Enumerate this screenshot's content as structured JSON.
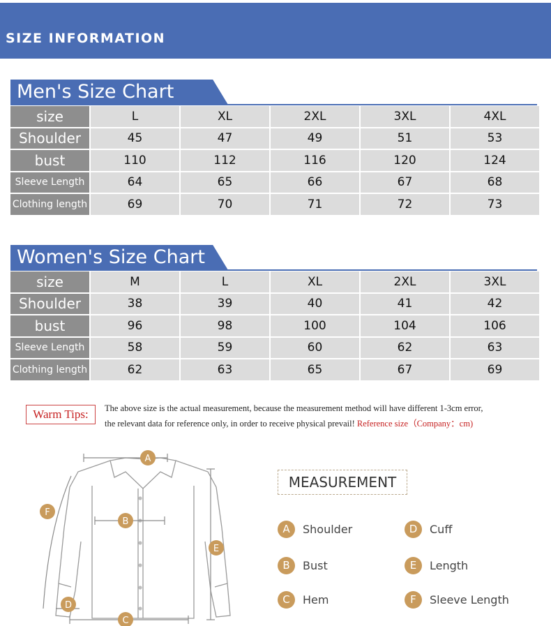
{
  "banner": {
    "title": "SIZE INFORMATION"
  },
  "men_chart": {
    "title": "Men's Size Chart",
    "rows": [
      {
        "label": "size",
        "values": [
          "L",
          "XL",
          "2XL",
          "3XL",
          "4XL"
        ]
      },
      {
        "label": "Shoulder",
        "values": [
          "45",
          "47",
          "49",
          "51",
          "53"
        ]
      },
      {
        "label": "bust",
        "values": [
          "110",
          "112",
          "116",
          "120",
          "124"
        ]
      },
      {
        "label": "Sleeve Length",
        "values": [
          "64",
          "65",
          "66",
          "67",
          "68"
        ]
      },
      {
        "label": "Clothing length",
        "values": [
          "69",
          "70",
          "71",
          "72",
          "73"
        ]
      }
    ]
  },
  "women_chart": {
    "title": "Women's Size Chart",
    "rows": [
      {
        "label": "size",
        "values": [
          "M",
          "L",
          "XL",
          "2XL",
          "3XL"
        ]
      },
      {
        "label": "Shoulder",
        "values": [
          "38",
          "39",
          "40",
          "41",
          "42"
        ]
      },
      {
        "label": "bust",
        "values": [
          "96",
          "98",
          "100",
          "104",
          "106"
        ]
      },
      {
        "label": "Sleeve Length",
        "values": [
          "58",
          "59",
          "60",
          "62",
          "63"
        ]
      },
      {
        "label": "Clothing length",
        "values": [
          "62",
          "63",
          "65",
          "67",
          "69"
        ]
      }
    ]
  },
  "tips": {
    "label": "Warm Tips:",
    "line1": "The above size is the actual measurement, because the measurement method will have different 1-3cm error,",
    "line2": "the relevant data for reference only, in order to receive physical prevail!",
    "reference": "Reference size（Company：cm)"
  },
  "measurement": {
    "title": "MEASUREMENT",
    "items": [
      {
        "letter": "A",
        "label": "Shoulder"
      },
      {
        "letter": "B",
        "label": "Bust"
      },
      {
        "letter": "C",
        "label": "Hem"
      },
      {
        "letter": "D",
        "label": "Cuff"
      },
      {
        "letter": "E",
        "label": "Length"
      },
      {
        "letter": "F",
        "label": "Sleeve Length"
      }
    ]
  },
  "colors": {
    "banner": "#4a6db4",
    "header_cell": "#8e8e8e",
    "value_cell": "#dcdcdc",
    "badge": "#c99b5c",
    "tips_red": "#c62020"
  }
}
